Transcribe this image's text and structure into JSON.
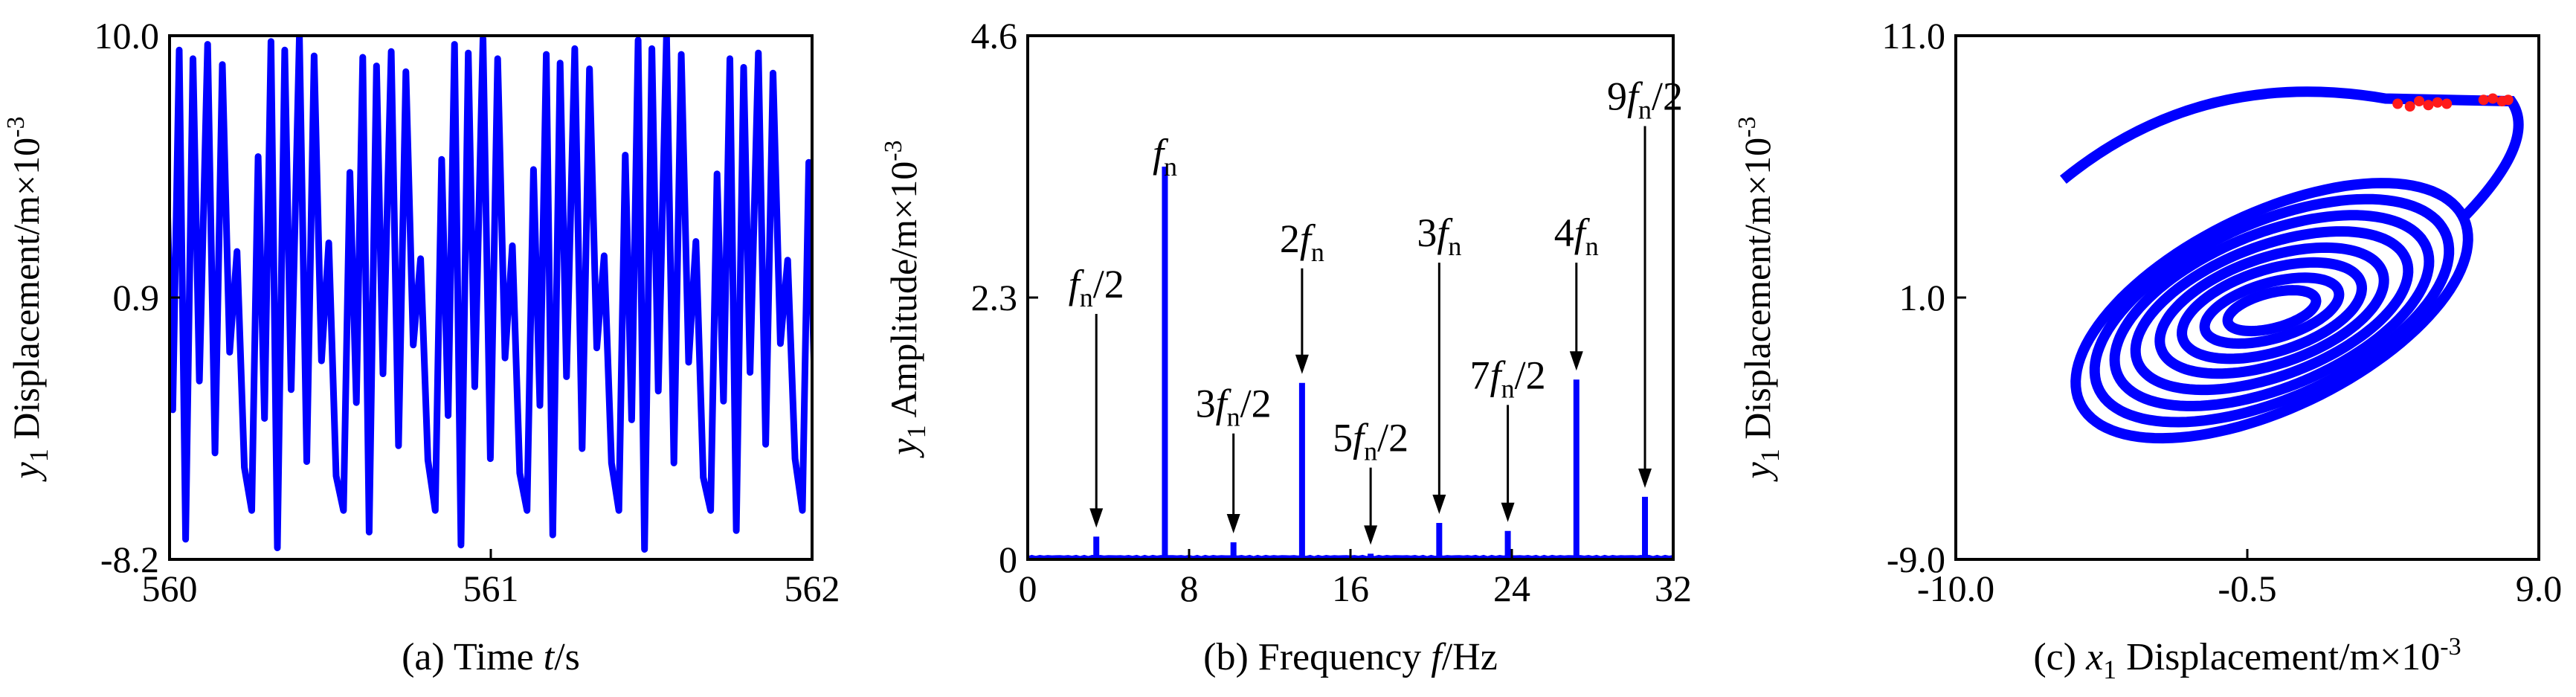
{
  "colors": {
    "trace": "#0000ff",
    "poincare": "#ff1a1a",
    "axes": "#000000"
  },
  "chart_data": [
    {
      "type": "line",
      "caption": {
        "prefix": "(a) Time  ",
        "var": "t",
        "unit": "/s"
      },
      "ylabel": {
        "var": "y",
        "sub": "1",
        "text": " Displacement/m×10",
        "exp": "-3"
      },
      "xlim": [
        560,
        562
      ],
      "ylim": [
        -8.2,
        10.0
      ],
      "xticks": [
        "560",
        "561",
        "562"
      ],
      "yticks": [
        "-8.2",
        "0.9",
        "10.0"
      ],
      "period_s": 0.2857,
      "series": [
        {
          "phase": [
            0.0,
            0.07,
            0.14,
            0.21,
            0.28,
            0.36,
            0.43,
            0.52,
            0.6,
            0.68,
            0.76,
            0.84,
            0.92,
            1.0
          ],
          "values": [
            -6.5,
            5.5,
            -3.0,
            9.5,
            -7.5,
            9.2,
            -2.0,
            9.7,
            -4.5,
            9.0,
            -1.0,
            2.5,
            -5.0,
            -6.5
          ]
        }
      ]
    },
    {
      "type": "bar",
      "caption": {
        "prefix": "(b) Frequency  ",
        "var": "f",
        "unit": "/Hz"
      },
      "ylabel": {
        "var": "y",
        "sub": "1",
        "text": " Amplitude/m×10",
        "exp": "-3"
      },
      "xlim": [
        0,
        32
      ],
      "ylim": [
        0,
        4.6
      ],
      "xticks": [
        "0",
        "8",
        "16",
        "24",
        "32"
      ],
      "yticks": [
        "0",
        "2.3",
        "4.6"
      ],
      "x": [
        3.4,
        6.8,
        10.2,
        13.6,
        17.0,
        20.4,
        23.8,
        27.2,
        30.6
      ],
      "values": [
        0.2,
        3.45,
        0.15,
        1.55,
        0.05,
        0.32,
        0.25,
        1.58,
        0.55
      ],
      "annotations": [
        {
          "x": 3.4,
          "label_y": 2.3,
          "pre": "",
          "post": "/2"
        },
        {
          "x": 6.8,
          "label_y": 3.45,
          "pre": "",
          "post": ""
        },
        {
          "x": 10.2,
          "label_y": 1.25,
          "pre": "3",
          "post": "/2"
        },
        {
          "x": 13.6,
          "label_y": 2.7,
          "pre": "2",
          "post": ""
        },
        {
          "x": 17.0,
          "label_y": 0.95,
          "pre": "5",
          "post": "/2"
        },
        {
          "x": 20.4,
          "label_y": 2.75,
          "pre": "3",
          "post": ""
        },
        {
          "x": 23.8,
          "label_y": 1.5,
          "pre": "7",
          "post": "/2"
        },
        {
          "x": 27.2,
          "label_y": 2.75,
          "pre": "4",
          "post": ""
        },
        {
          "x": 30.6,
          "label_y": 3.95,
          "pre": "9",
          "post": "/2"
        }
      ],
      "annotation_var": "f",
      "annotation_sub": "n"
    },
    {
      "type": "scatter",
      "caption": {
        "prefix": "(c) ",
        "var": "x",
        "sub": "1",
        "text": " Displacement/m×10",
        "exp": "-3"
      },
      "ylabel": {
        "var": "y",
        "sub": "1",
        "text": " Displacement/m×10",
        "exp": "-3"
      },
      "xlim": [
        -10.0,
        9.0
      ],
      "ylim": [
        -9.0,
        11.0
      ],
      "xticks": [
        "-10.0",
        "-0.5",
        "9.0"
      ],
      "yticks": [
        "-9.0",
        "1.0",
        "11.0"
      ],
      "orbit": {
        "center_x": 0.3,
        "center_y": 0.5,
        "loops": [
          {
            "rx": 7.2,
            "ry": 6.5,
            "rot": 32
          },
          {
            "rx": 6.4,
            "ry": 5.9,
            "rot": 30
          },
          {
            "rx": 5.6,
            "ry": 5.2,
            "rot": 28
          },
          {
            "rx": 4.8,
            "ry": 4.4,
            "rot": 26
          },
          {
            "rx": 3.9,
            "ry": 3.6,
            "rot": 24
          },
          {
            "rx": 3.1,
            "ry": 2.8,
            "rot": 22
          },
          {
            "rx": 2.3,
            "ry": 1.9,
            "rot": 20
          },
          {
            "rx": 1.5,
            "ry": 1.2,
            "rot": 18
          }
        ]
      },
      "poincare_points": [
        [
          4.4,
          8.4
        ],
        [
          4.8,
          8.3
        ],
        [
          5.1,
          8.5
        ],
        [
          5.4,
          8.35
        ],
        [
          5.7,
          8.45
        ],
        [
          6.0,
          8.4
        ],
        [
          7.2,
          8.55
        ],
        [
          7.5,
          8.6
        ],
        [
          7.8,
          8.5
        ],
        [
          8.0,
          8.55
        ]
      ]
    }
  ]
}
